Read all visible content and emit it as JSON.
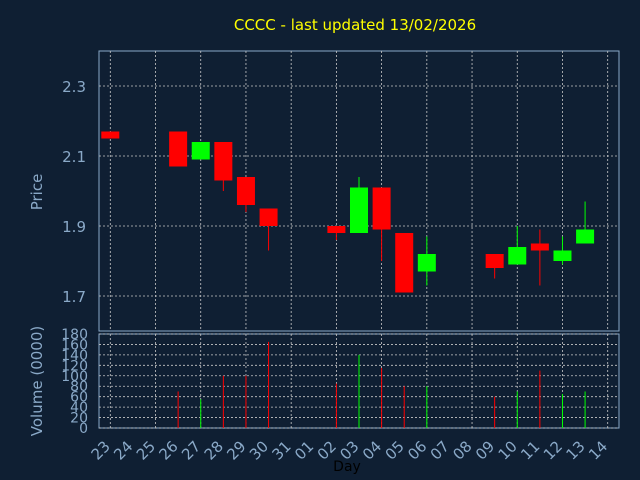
{
  "chart_data": [
    {
      "type": "candlestick",
      "title": "CCCC - last updated 13/02/2026",
      "ylabel": "Price",
      "ylim": [
        1.6,
        2.4
      ],
      "yticks": [
        "1.7",
        "1.9",
        "2.1",
        "2.3"
      ],
      "days": [
        "23",
        "24",
        "25",
        "26",
        "27",
        "28",
        "29",
        "30",
        "31",
        "01",
        "02",
        "03",
        "04",
        "05",
        "06",
        "07",
        "08",
        "09",
        "10",
        "11",
        "12",
        "13",
        "14"
      ],
      "candles": [
        {
          "day": "23",
          "open": 2.17,
          "close": 2.15,
          "high": 2.17,
          "low": 2.15
        },
        {
          "day": "26",
          "open": 2.17,
          "close": 2.07,
          "high": 2.17,
          "low": 2.07
        },
        {
          "day": "27",
          "open": 2.09,
          "close": 2.14,
          "high": 2.14,
          "low": 2.09
        },
        {
          "day": "28",
          "open": 2.14,
          "close": 2.03,
          "high": 2.14,
          "low": 2.0
        },
        {
          "day": "29",
          "open": 2.04,
          "close": 1.96,
          "high": 2.04,
          "low": 1.94
        },
        {
          "day": "30",
          "open": 1.95,
          "close": 1.9,
          "high": 1.95,
          "low": 1.83
        },
        {
          "day": "02",
          "open": 1.9,
          "close": 1.88,
          "high": 1.9,
          "low": 1.86
        },
        {
          "day": "03",
          "open": 1.88,
          "close": 2.01,
          "high": 2.04,
          "low": 1.88
        },
        {
          "day": "04",
          "open": 2.01,
          "close": 1.89,
          "high": 2.01,
          "low": 1.8
        },
        {
          "day": "05",
          "open": 1.88,
          "close": 1.71,
          "high": 1.88,
          "low": 1.71
        },
        {
          "day": "06",
          "open": 1.77,
          "close": 1.82,
          "high": 1.87,
          "low": 1.73
        },
        {
          "day": "09",
          "open": 1.82,
          "close": 1.78,
          "high": 1.82,
          "low": 1.75
        },
        {
          "day": "10",
          "open": 1.79,
          "close": 1.84,
          "high": 1.9,
          "low": 1.79
        },
        {
          "day": "11",
          "open": 1.85,
          "close": 1.83,
          "high": 1.89,
          "low": 1.73
        },
        {
          "day": "12",
          "open": 1.8,
          "close": 1.83,
          "high": 1.87,
          "low": 1.79
        },
        {
          "day": "13",
          "open": 1.85,
          "close": 1.89,
          "high": 1.97,
          "low": 1.85
        }
      ],
      "up_color": "#00ff00",
      "down_color": "#ff0000",
      "grid": true
    },
    {
      "type": "bar",
      "ylabel": "Volume (0000)",
      "xlabel": "Day",
      "ylim": [
        0,
        180
      ],
      "yticks": [
        "0",
        "20",
        "40",
        "60",
        "80",
        "100",
        "120",
        "140",
        "160",
        "180"
      ],
      "volumes": [
        {
          "day": "26",
          "value": 70,
          "dir": "down"
        },
        {
          "day": "27",
          "value": 55,
          "dir": "up"
        },
        {
          "day": "28",
          "value": 100,
          "dir": "down"
        },
        {
          "day": "29",
          "value": 100,
          "dir": "down"
        },
        {
          "day": "30",
          "value": 165,
          "dir": "down"
        },
        {
          "day": "02",
          "value": 85,
          "dir": "down"
        },
        {
          "day": "03",
          "value": 140,
          "dir": "up"
        },
        {
          "day": "04",
          "value": 115,
          "dir": "down"
        },
        {
          "day": "05",
          "value": 80,
          "dir": "down"
        },
        {
          "day": "06",
          "value": 80,
          "dir": "up"
        },
        {
          "day": "09",
          "value": 60,
          "dir": "down"
        },
        {
          "day": "10",
          "value": 70,
          "dir": "up"
        },
        {
          "day": "11",
          "value": 110,
          "dir": "down"
        },
        {
          "day": "12",
          "value": 65,
          "dir": "up"
        },
        {
          "day": "13",
          "value": 70,
          "dir": "up"
        }
      ]
    }
  ]
}
